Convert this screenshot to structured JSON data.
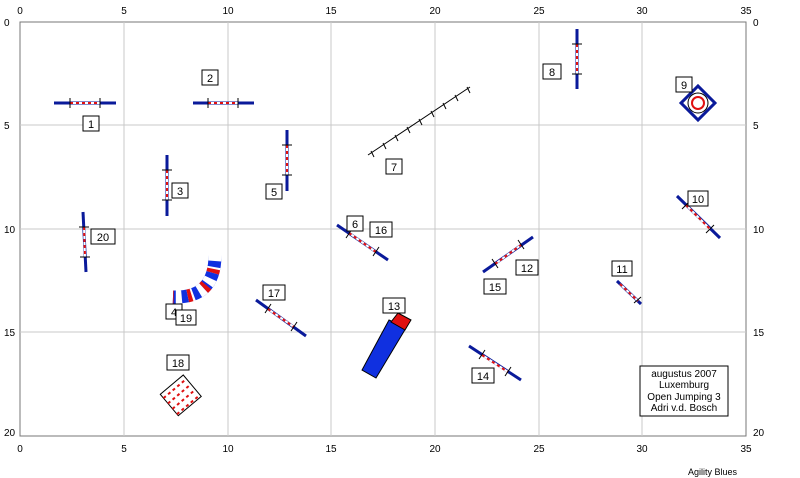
{
  "course": {
    "x_ticks": [
      "0",
      "5",
      "10",
      "15",
      "20",
      "25",
      "30",
      "35"
    ],
    "y_ticks": [
      "0",
      "5",
      "10",
      "15",
      "20"
    ],
    "obstacle_numbers": [
      "1",
      "2",
      "3",
      "4",
      "5",
      "6",
      "7",
      "8",
      "9",
      "10",
      "11",
      "12",
      "13",
      "14",
      "15",
      "16",
      "17",
      "18",
      "19",
      "20"
    ],
    "info_box": [
      "augustus 2007",
      "Luxemburg",
      "Open Jumping 3",
      "Adri v.d. Bosch"
    ],
    "footer": "Agility Blues",
    "colors": {
      "bar_blue": "#0a1a9a",
      "pole_red": "#e01010",
      "tunnel_blue": "#1030e0",
      "grid": "#c8c8c8"
    }
  }
}
